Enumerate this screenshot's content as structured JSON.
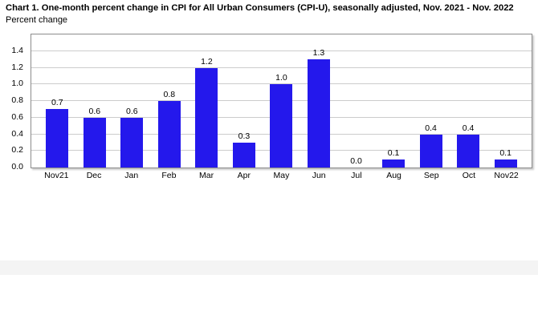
{
  "title": "Chart 1. One-month percent change in CPI for All Urban Consumers (CPI-U), seasonally adjusted, Nov. 2021 - Nov. 2022",
  "subtitle": "Percent change",
  "colors": {
    "bar": "#2418ec",
    "gridline": "#cccccc",
    "frame": "#8c8c8c",
    "band": "#f4f4f4",
    "text": "#000000"
  },
  "chart_data": {
    "type": "bar",
    "title": "Chart 1. One-month percent change in CPI for All Urban Consumers (CPI-U), seasonally adjusted, Nov. 2021 - Nov. 2022",
    "ylabel": "Percent change",
    "xlabel": "",
    "categories": [
      "Nov21",
      "Dec",
      "Jan",
      "Feb",
      "Mar",
      "Apr",
      "May",
      "Jun",
      "Jul",
      "Aug",
      "Sep",
      "Oct",
      "Nov22"
    ],
    "values": [
      0.7,
      0.6,
      0.6,
      0.8,
      1.2,
      0.3,
      1.0,
      1.3,
      0.0,
      0.1,
      0.4,
      0.4,
      0.1
    ],
    "value_labels": [
      "0.7",
      "0.6",
      "0.6",
      "0.8",
      "1.2",
      "0.3",
      "1.0",
      "1.3",
      "0.0",
      "0.1",
      "0.4",
      "0.4",
      "0.1"
    ],
    "yticks": [
      "0.0",
      "0.2",
      "0.4",
      "0.6",
      "0.8",
      "1.0",
      "1.2",
      "1.4"
    ],
    "ylim": [
      0,
      1.6
    ],
    "grid": true,
    "legend": false
  }
}
